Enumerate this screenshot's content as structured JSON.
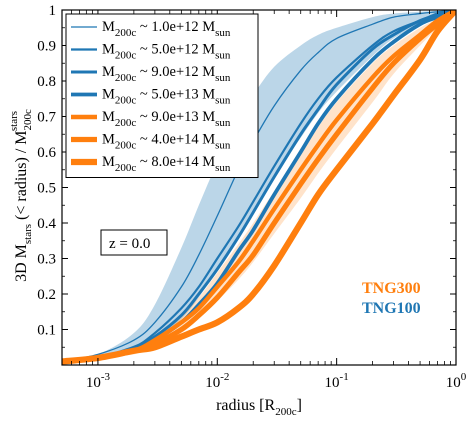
{
  "chart_data": {
    "type": "line",
    "xscale": "log",
    "xlim": [
      0.0005,
      1.0
    ],
    "ylim": [
      0.0,
      1.0
    ],
    "xlabel": "radius [R_200c]",
    "ylabel": "3D M_stars (< radius) / M_200c^stars",
    "xticks": [
      {
        "value": 0.001,
        "base": "10",
        "exp": "-3"
      },
      {
        "value": 0.01,
        "base": "10",
        "exp": "-2"
      },
      {
        "value": 0.1,
        "base": "10",
        "exp": "-1"
      },
      {
        "value": 1.0,
        "base": "10",
        "exp": "0"
      }
    ],
    "yticks": [
      {
        "value": 0.1,
        "label": "0.1"
      },
      {
        "value": 0.2,
        "label": "0.2"
      },
      {
        "value": 0.3,
        "label": "0.3"
      },
      {
        "value": 0.4,
        "label": "0.4"
      },
      {
        "value": 0.5,
        "label": "0.5"
      },
      {
        "value": 0.6,
        "label": "0.6"
      },
      {
        "value": 0.7,
        "label": "0.7"
      },
      {
        "value": 0.8,
        "label": "0.8"
      },
      {
        "value": 0.9,
        "label": "0.9"
      },
      {
        "value": 1.0,
        "label": "1"
      }
    ],
    "annotations": {
      "redshift": "z = 0.0",
      "sim_labels": [
        {
          "text": "TNG300",
          "color": "#ff7f0e"
        },
        {
          "text": "TNG100",
          "color": "#1f77b4"
        }
      ]
    },
    "bands": [
      {
        "color": "#1f77b4",
        "opacity": 0.3,
        "x": [
          0.0005,
          0.001,
          0.002,
          0.003,
          0.005,
          0.007,
          0.01,
          0.015,
          0.02,
          0.03,
          0.05,
          0.07,
          0.1,
          0.2,
          0.3,
          0.5,
          0.7,
          1.0
        ],
        "upper": [
          0.01,
          0.03,
          0.09,
          0.17,
          0.33,
          0.45,
          0.57,
          0.69,
          0.76,
          0.84,
          0.9,
          0.93,
          0.95,
          0.98,
          0.99,
          0.995,
          0.998,
          1.0
        ],
        "lower": [
          0.01,
          0.02,
          0.04,
          0.07,
          0.13,
          0.19,
          0.27,
          0.36,
          0.43,
          0.53,
          0.64,
          0.71,
          0.77,
          0.87,
          0.92,
          0.96,
          0.98,
          1.0
        ]
      },
      {
        "color": "#ff7f0e",
        "opacity": 0.22,
        "x": [
          0.0005,
          0.001,
          0.002,
          0.003,
          0.005,
          0.007,
          0.01,
          0.015,
          0.02,
          0.03,
          0.05,
          0.07,
          0.1,
          0.2,
          0.3,
          0.5,
          0.7,
          1.0
        ],
        "upper": [
          0.01,
          0.02,
          0.05,
          0.08,
          0.14,
          0.19,
          0.26,
          0.34,
          0.4,
          0.49,
          0.6,
          0.67,
          0.74,
          0.85,
          0.9,
          0.95,
          0.975,
          1.0
        ],
        "lower": [
          0.01,
          0.02,
          0.03,
          0.05,
          0.09,
          0.13,
          0.18,
          0.24,
          0.29,
          0.37,
          0.47,
          0.54,
          0.61,
          0.74,
          0.82,
          0.9,
          0.95,
          1.0
        ]
      }
    ],
    "x": [
      0.0005,
      0.001,
      0.002,
      0.003,
      0.005,
      0.007,
      0.01,
      0.015,
      0.02,
      0.03,
      0.05,
      0.07,
      0.1,
      0.2,
      0.3,
      0.5,
      0.7,
      1.0
    ],
    "series": [
      {
        "label_mass": "1.0e+12",
        "color": "#1f77b4",
        "width": 1.3,
        "values": [
          0.01,
          0.03,
          0.07,
          0.12,
          0.22,
          0.31,
          0.42,
          0.55,
          0.63,
          0.73,
          0.83,
          0.88,
          0.92,
          0.96,
          0.98,
          0.99,
          0.995,
          1.0
        ]
      },
      {
        "label_mass": "5.0e+12",
        "color": "#1f77b4",
        "width": 2.2,
        "values": [
          0.01,
          0.02,
          0.05,
          0.09,
          0.16,
          0.22,
          0.3,
          0.39,
          0.46,
          0.56,
          0.68,
          0.75,
          0.81,
          0.9,
          0.94,
          0.97,
          0.99,
          1.0
        ]
      },
      {
        "label_mass": "9.0e+12",
        "color": "#1f77b4",
        "width": 3.0,
        "values": [
          0.01,
          0.02,
          0.05,
          0.08,
          0.14,
          0.2,
          0.27,
          0.36,
          0.43,
          0.53,
          0.65,
          0.72,
          0.79,
          0.89,
          0.93,
          0.97,
          0.985,
          1.0
        ]
      },
      {
        "label_mass": "5.0e+13",
        "color": "#1f77b4",
        "width": 3.8,
        "values": [
          0.01,
          0.02,
          0.04,
          0.07,
          0.12,
          0.17,
          0.23,
          0.32,
          0.38,
          0.48,
          0.6,
          0.68,
          0.75,
          0.86,
          0.91,
          0.96,
          0.98,
          1.0
        ]
      },
      {
        "label_mass": "9.0e+13",
        "color": "#ff7f0e",
        "width": 4.4,
        "values": [
          0.01,
          0.02,
          0.04,
          0.07,
          0.12,
          0.16,
          0.22,
          0.29,
          0.35,
          0.44,
          0.55,
          0.62,
          0.69,
          0.81,
          0.87,
          0.93,
          0.97,
          1.0
        ]
      },
      {
        "label_mass": "4.0e+14",
        "color": "#ff7f0e",
        "width": 5.2,
        "values": [
          0.01,
          0.02,
          0.04,
          0.06,
          0.1,
          0.14,
          0.19,
          0.26,
          0.31,
          0.4,
          0.51,
          0.58,
          0.65,
          0.78,
          0.85,
          0.92,
          0.96,
          1.0
        ]
      },
      {
        "label_mass": "8.0e+14",
        "color": "#ff7f0e",
        "width": 6.2,
        "values": [
          0.01,
          0.02,
          0.04,
          0.05,
          0.08,
          0.1,
          0.12,
          0.16,
          0.2,
          0.28,
          0.4,
          0.48,
          0.55,
          0.68,
          0.76,
          0.86,
          0.94,
          1.0
        ]
      }
    ],
    "legend": {
      "prefix": "M",
      "sub": "200c",
      "sep": " ~ ",
      "unit": "M",
      "unit_sub": "sun",
      "placement": "top-left"
    }
  }
}
